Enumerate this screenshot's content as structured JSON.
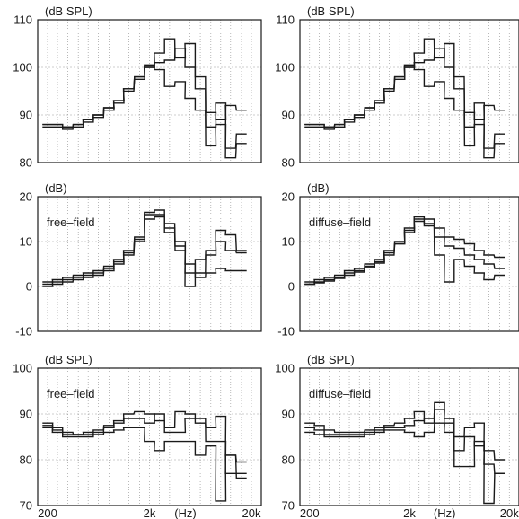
{
  "chart_data": [
    {
      "type": "line",
      "step": true,
      "unit_label": "(dB SPL)",
      "annotation": "",
      "ylim": [
        80,
        110
      ],
      "yticks": [
        "80",
        "90",
        "100",
        "110"
      ],
      "xlim": [
        160,
        25000
      ],
      "xscale": "log",
      "xtick_labels": [],
      "series": [
        {
          "x": [
            200,
            250,
            315,
            400,
            500,
            630,
            800,
            1000,
            1250,
            1600,
            2000,
            2500,
            3150,
            4000,
            5000,
            6300,
            8000,
            10000,
            12500,
            16000
          ],
          "values": [
            88,
            88,
            87.5,
            88,
            89,
            90,
            91.5,
            93,
            95.5,
            98,
            100.5,
            103,
            106,
            102,
            105,
            98,
            90.5,
            89,
            92,
            91
          ]
        },
        {
          "x": [
            200,
            250,
            315,
            400,
            500,
            630,
            800,
            1000,
            1250,
            1600,
            2000,
            2500,
            3150,
            4000,
            5000,
            6300,
            8000,
            10000,
            12500,
            16000
          ],
          "values": [
            87.5,
            87.5,
            87,
            87.5,
            88.5,
            89.5,
            91,
            92.5,
            95,
            97.5,
            100,
            101,
            101.5,
            104,
            100,
            95.5,
            87.5,
            92.5,
            83,
            86
          ]
        },
        {
          "x": [
            200,
            250,
            315,
            400,
            500,
            630,
            800,
            1000,
            1250,
            1600,
            2000,
            2500,
            3150,
            4000,
            5000,
            6300,
            8000,
            10000,
            12500,
            16000
          ],
          "values": [
            88,
            88,
            87.5,
            88,
            89,
            90,
            91.5,
            93,
            95.5,
            98,
            100,
            99.5,
            96,
            97,
            93.5,
            91,
            83.5,
            88,
            81,
            84
          ]
        }
      ]
    },
    {
      "type": "line",
      "step": true,
      "unit_label": "(dB SPL)",
      "annotation": "",
      "ylim": [
        80,
        110
      ],
      "yticks": [
        "80",
        "90",
        "100",
        "110"
      ],
      "xlim": [
        160,
        25000
      ],
      "xscale": "log",
      "xtick_labels": [],
      "series": [
        {
          "x": [
            200,
            250,
            315,
            400,
            500,
            630,
            800,
            1000,
            1250,
            1600,
            2000,
            2500,
            3150,
            4000,
            5000,
            6300,
            8000,
            10000,
            12500,
            16000
          ],
          "values": [
            88,
            88,
            87.5,
            88,
            89,
            90,
            91.5,
            93,
            95.5,
            98,
            100.5,
            103,
            106,
            102,
            105,
            98,
            90.5,
            89,
            92,
            91
          ]
        },
        {
          "x": [
            200,
            250,
            315,
            400,
            500,
            630,
            800,
            1000,
            1250,
            1600,
            2000,
            2500,
            3150,
            4000,
            5000,
            6300,
            8000,
            10000,
            12500,
            16000
          ],
          "values": [
            87.5,
            87.5,
            87,
            87.5,
            88.5,
            89.5,
            91,
            92.5,
            95,
            97.5,
            100,
            101,
            101.5,
            104,
            100,
            95.5,
            87.5,
            92.5,
            83,
            86
          ]
        },
        {
          "x": [
            200,
            250,
            315,
            400,
            500,
            630,
            800,
            1000,
            1250,
            1600,
            2000,
            2500,
            3150,
            4000,
            5000,
            6300,
            8000,
            10000,
            12500,
            16000
          ],
          "values": [
            88,
            88,
            87.5,
            88,
            89,
            90,
            91.5,
            93,
            95.5,
            98,
            100,
            99.5,
            96,
            97,
            93.5,
            91,
            83.5,
            88,
            81,
            84
          ]
        }
      ]
    },
    {
      "type": "line",
      "step": true,
      "unit_label": "(dB)",
      "annotation": "free–field",
      "ylim": [
        -10,
        20
      ],
      "yticks": [
        "-10",
        "0",
        "10",
        "20"
      ],
      "xlim": [
        160,
        25000
      ],
      "xscale": "log",
      "xtick_labels": [],
      "series": [
        {
          "x": [
            200,
            250,
            315,
            400,
            500,
            630,
            800,
            1000,
            1250,
            1600,
            2000,
            2500,
            3150,
            4000,
            5000,
            6300,
            8000,
            10000,
            12500,
            16000
          ],
          "values": [
            1,
            1.5,
            2,
            2.5,
            3,
            3.5,
            4.5,
            6,
            8,
            11,
            16.5,
            17,
            14,
            10,
            5,
            3,
            7,
            12.5,
            11.5,
            8
          ]
        },
        {
          "x": [
            200,
            250,
            315,
            400,
            500,
            630,
            800,
            1000,
            1250,
            1600,
            2000,
            2500,
            3150,
            4000,
            5000,
            6300,
            8000,
            10000,
            12500,
            16000
          ],
          "values": [
            0.5,
            1,
            1.5,
            2,
            2.5,
            3,
            4,
            5.5,
            7.5,
            10.5,
            16,
            16,
            13,
            9,
            0,
            6,
            8,
            10,
            8,
            7.5
          ]
        },
        {
          "x": [
            200,
            250,
            315,
            400,
            500,
            630,
            800,
            1000,
            1250,
            1600,
            2000,
            2500,
            3150,
            4000,
            5000,
            6300,
            8000,
            10000,
            12500,
            16000
          ],
          "values": [
            0,
            0.5,
            1,
            1.5,
            2,
            2.5,
            3.5,
            5,
            7,
            10,
            15,
            15.5,
            12,
            8,
            3,
            2,
            3,
            4,
            3.5,
            3.5
          ]
        }
      ]
    },
    {
      "type": "line",
      "step": true,
      "unit_label": "(dB)",
      "annotation": "diffuse–field",
      "ylim": [
        -10,
        20
      ],
      "yticks": [
        "-10",
        "0",
        "10",
        "20"
      ],
      "xlim": [
        160,
        25000
      ],
      "xscale": "log",
      "xtick_labels": [],
      "series": [
        {
          "x": [
            200,
            250,
            315,
            400,
            500,
            630,
            800,
            1000,
            1250,
            1600,
            2000,
            2500,
            3150,
            4000,
            5000,
            6300,
            8000,
            10000,
            12500,
            16000
          ],
          "values": [
            1,
            1.5,
            2,
            2.5,
            3.5,
            4,
            5,
            6,
            8,
            10,
            13,
            15.5,
            15,
            13,
            11,
            10.5,
            9.5,
            8,
            7,
            6.5
          ]
        },
        {
          "x": [
            200,
            250,
            315,
            400,
            500,
            630,
            800,
            1000,
            1250,
            1600,
            2000,
            2500,
            3150,
            4000,
            5000,
            6300,
            8000,
            10000,
            12500,
            16000
          ],
          "values": [
            0.5,
            1,
            1.5,
            2,
            3,
            3.5,
            4.5,
            5.5,
            7.5,
            9.5,
            12.5,
            15,
            14,
            11,
            9,
            8.5,
            7,
            6,
            5,
            4
          ]
        },
        {
          "x": [
            200,
            250,
            315,
            400,
            500,
            630,
            800,
            1000,
            1250,
            1600,
            2000,
            2500,
            3150,
            4000,
            5000,
            6300,
            8000,
            10000,
            12500,
            16000
          ],
          "values": [
            0.5,
            0.8,
            1.2,
            1.8,
            2.5,
            3.2,
            4.2,
            5.2,
            7,
            9.5,
            12,
            14.5,
            13.5,
            7,
            1,
            6,
            4.5,
            3,
            1.5,
            2.5
          ]
        }
      ]
    },
    {
      "type": "line",
      "step": true,
      "unit_label": "(dB SPL)",
      "annotation": "free–field",
      "ylim": [
        70,
        100
      ],
      "yticks": [
        "70",
        "80",
        "90",
        "100"
      ],
      "xlim": [
        160,
        25000
      ],
      "xscale": "log",
      "xtick_labels": [
        {
          "x": 200,
          "label": "200"
        },
        {
          "x": 2000,
          "label": "2k"
        },
        {
          "x": 4500,
          "label": "(Hz)"
        },
        {
          "x": 20000,
          "label": "20k"
        }
      ],
      "series": [
        {
          "x": [
            200,
            250,
            315,
            400,
            500,
            630,
            800,
            1000,
            1250,
            1600,
            2000,
            2500,
            3150,
            4000,
            5000,
            6300,
            8000,
            10000,
            12500,
            16000
          ],
          "values": [
            88,
            87,
            86,
            85.5,
            86,
            86.5,
            87.5,
            88.5,
            90,
            90.5,
            90,
            88.5,
            87,
            90.5,
            90,
            88,
            87,
            89.5,
            81,
            79.5
          ]
        },
        {
          "x": [
            200,
            250,
            315,
            400,
            500,
            630,
            800,
            1000,
            1250,
            1600,
            2000,
            2500,
            3150,
            4000,
            5000,
            6300,
            8000,
            10000,
            12500,
            16000
          ],
          "values": [
            87.5,
            86.5,
            85.5,
            85.5,
            85.5,
            86,
            87,
            88,
            89,
            89,
            88,
            90,
            86,
            86,
            89,
            89,
            84,
            84,
            77,
            77
          ]
        },
        {
          "x": [
            200,
            250,
            315,
            400,
            500,
            630,
            800,
            1000,
            1250,
            1600,
            2000,
            2500,
            3150,
            4000,
            5000,
            6300,
            8000,
            10000,
            12500,
            16000
          ],
          "values": [
            87,
            86,
            85,
            85,
            85,
            85.5,
            86,
            86.5,
            87,
            87,
            84,
            82,
            84,
            84,
            84,
            81,
            83,
            71,
            81,
            76
          ]
        }
      ]
    },
    {
      "type": "line",
      "step": true,
      "unit_label": "(dB SPL)",
      "annotation": "diffuse–field",
      "ylim": [
        70,
        100
      ],
      "yticks": [
        "70",
        "80",
        "90",
        "100"
      ],
      "xlim": [
        160,
        25000
      ],
      "xscale": "log",
      "xtick_labels": [
        {
          "x": 200,
          "label": "200"
        },
        {
          "x": 2000,
          "label": "2k"
        },
        {
          "x": 4500,
          "label": "(Hz)"
        },
        {
          "x": 20000,
          "label": "20k"
        }
      ],
      "series": [
        {
          "x": [
            200,
            250,
            315,
            400,
            500,
            630,
            800,
            1000,
            1250,
            1600,
            2000,
            2500,
            3150,
            4000,
            5000,
            6300,
            8000,
            10000,
            12500,
            16000
          ],
          "values": [
            88,
            87.5,
            86.5,
            86,
            86,
            86,
            86.5,
            87,
            87.5,
            88,
            89,
            90.5,
            88,
            92.5,
            88,
            85,
            87,
            88,
            82,
            80
          ]
        },
        {
          "x": [
            200,
            250,
            315,
            400,
            500,
            630,
            800,
            1000,
            1250,
            1600,
            2000,
            2500,
            3150,
            4000,
            5000,
            6300,
            8000,
            10000,
            12500,
            16000
          ],
          "values": [
            87,
            86.5,
            85.5,
            85.5,
            85.5,
            85.5,
            86,
            86.5,
            87,
            87,
            87.5,
            88.5,
            89,
            91,
            89,
            82,
            85,
            83,
            79,
            77
          ]
        },
        {
          "x": [
            200,
            250,
            315,
            400,
            500,
            630,
            800,
            1000,
            1250,
            1600,
            2000,
            2500,
            3150,
            4000,
            5000,
            6300,
            8000,
            10000,
            12500,
            16000
          ],
          "values": [
            86,
            85.5,
            85,
            85,
            85,
            85,
            85.5,
            86,
            86.5,
            86.5,
            86,
            85,
            86,
            88,
            86,
            78.5,
            78.5,
            84,
            70.5,
            77
          ]
        }
      ]
    }
  ]
}
